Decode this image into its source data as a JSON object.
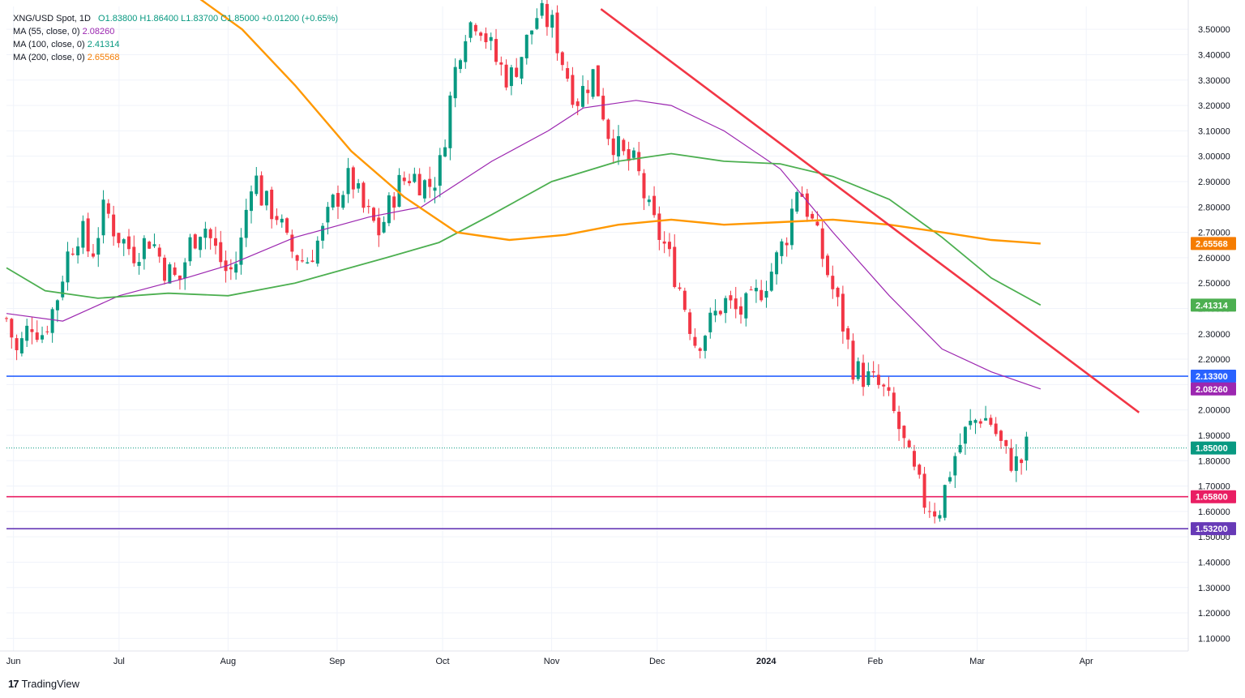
{
  "legend": {
    "symbol_line": "XNG/USD Spot, 1D",
    "ohlc": "O1.83800 H1.86400 L1.83700 C1.85000 +0.01200 (+0.65%)",
    "ma55_label": "MA (55, close, 0)",
    "ma55_value": "2.08260",
    "ma100_label": "MA (100, close, 0)",
    "ma100_value": "2.41314",
    "ma200_label": "MA (200, close, 0)",
    "ma200_value": "2.65568"
  },
  "branding": {
    "logo_icon": "tradingview-logo-icon",
    "text": "TradingView"
  },
  "colors": {
    "up": "#089981",
    "down": "#f23645",
    "ma55": "#9c27b0",
    "ma100": "#4caf50",
    "ma200": "#ff9800",
    "trendline": "#f23645",
    "blue_level": "#2962ff",
    "red_level": "#e91e63",
    "purple_level": "#673ab7",
    "last_price": "#089981"
  },
  "chart_data": {
    "type": "candlestick",
    "title": "XNG/USD Spot, 1D",
    "ylim": [
      1.05,
      3.59
    ],
    "y_ticks": [
      "3.50000",
      "3.40000",
      "3.30000",
      "3.20000",
      "3.10000",
      "3.00000",
      "2.90000",
      "2.80000",
      "2.70000",
      "2.60000",
      "2.50000",
      "2.40000",
      "2.30000",
      "2.20000",
      "2.10000",
      "2.00000",
      "1.90000",
      "1.80000",
      "1.70000",
      "1.60000",
      "1.50000",
      "1.40000",
      "1.30000",
      "1.20000",
      "1.10000"
    ],
    "x_ticks": [
      {
        "label": "Jun",
        "date": "2023-06-01"
      },
      {
        "label": "Jul",
        "date": "2023-07-01"
      },
      {
        "label": "Aug",
        "date": "2023-08-01"
      },
      {
        "label": "Sep",
        "date": "2023-09-01"
      },
      {
        "label": "Oct",
        "date": "2023-10-01"
      },
      {
        "label": "Nov",
        "date": "2023-11-01"
      },
      {
        "label": "Dec",
        "date": "2023-12-01"
      },
      {
        "label": "2024",
        "date": "2024-01-01"
      },
      {
        "label": "Feb",
        "date": "2024-02-01"
      },
      {
        "label": "Mar",
        "date": "2024-03-01"
      },
      {
        "label": "Apr",
        "date": "2024-04-01"
      }
    ],
    "x_range": [
      "2023-05-30",
      "2024-04-30"
    ],
    "close_path": [
      [
        "2023-05-30",
        2.36
      ],
      [
        "2023-06-02",
        2.22
      ],
      [
        "2023-06-06",
        2.35
      ],
      [
        "2023-06-09",
        2.3
      ],
      [
        "2023-06-13",
        2.42
      ],
      [
        "2023-06-16",
        2.6
      ],
      [
        "2023-06-20",
        2.72
      ],
      [
        "2023-06-23",
        2.6
      ],
      [
        "2023-06-27",
        2.8
      ],
      [
        "2023-06-30",
        2.7
      ],
      [
        "2023-07-05",
        2.62
      ],
      [
        "2023-07-10",
        2.68
      ],
      [
        "2023-07-14",
        2.56
      ],
      [
        "2023-07-18",
        2.5
      ],
      [
        "2023-07-21",
        2.65
      ],
      [
        "2023-07-25",
        2.74
      ],
      [
        "2023-07-28",
        2.64
      ],
      [
        "2023-08-01",
        2.53
      ],
      [
        "2023-08-04",
        2.6
      ],
      [
        "2023-08-08",
        2.95
      ],
      [
        "2023-08-11",
        2.82
      ],
      [
        "2023-08-15",
        2.77
      ],
      [
        "2023-08-18",
        2.64
      ],
      [
        "2023-08-23",
        2.58
      ],
      [
        "2023-08-28",
        2.7
      ],
      [
        "2023-08-31",
        2.82
      ],
      [
        "2023-09-05",
        2.92
      ],
      [
        "2023-09-08",
        2.8
      ],
      [
        "2023-09-13",
        2.7
      ],
      [
        "2023-09-18",
        2.88
      ],
      [
        "2023-09-22",
        2.93
      ],
      [
        "2023-09-27",
        2.88
      ],
      [
        "2023-09-30",
        2.94
      ],
      [
        "2023-10-04",
        3.3
      ],
      [
        "2023-10-07",
        3.5
      ],
      [
        "2023-10-11",
        3.55
      ],
      [
        "2023-10-16",
        3.38
      ],
      [
        "2023-10-20",
        3.3
      ],
      [
        "2023-10-24",
        3.42
      ],
      [
        "2023-10-28",
        3.56
      ],
      [
        "2023-11-01",
        3.52
      ],
      [
        "2023-11-04",
        3.38
      ],
      [
        "2023-11-08",
        3.22
      ],
      [
        "2023-11-13",
        3.33
      ],
      [
        "2023-11-17",
        3.1
      ],
      [
        "2023-11-21",
        3.0
      ],
      [
        "2023-11-25",
        2.96
      ],
      [
        "2023-11-29",
        2.76
      ],
      [
        "2023-12-03",
        2.65
      ],
      [
        "2023-12-07",
        2.5
      ],
      [
        "2023-12-12",
        2.26
      ],
      [
        "2023-12-16",
        2.34
      ],
      [
        "2023-12-20",
        2.43
      ],
      [
        "2023-12-24",
        2.38
      ],
      [
        "2023-12-28",
        2.42
      ],
      [
        "2024-01-03",
        2.56
      ],
      [
        "2024-01-07",
        2.7
      ],
      [
        "2024-01-10",
        2.9
      ],
      [
        "2024-01-14",
        2.74
      ],
      [
        "2024-01-18",
        2.56
      ],
      [
        "2024-01-22",
        2.38
      ],
      [
        "2024-01-26",
        2.16
      ],
      [
        "2024-01-30",
        2.12
      ],
      [
        "2024-02-03",
        2.08
      ],
      [
        "2024-02-07",
        1.96
      ],
      [
        "2024-02-11",
        1.78
      ],
      [
        "2024-02-15",
        1.64
      ],
      [
        "2024-02-19",
        1.6
      ],
      [
        "2024-02-23",
        1.8
      ],
      [
        "2024-02-27",
        1.92
      ],
      [
        "2024-03-02",
        1.98
      ],
      [
        "2024-03-05",
        1.95
      ],
      [
        "2024-03-09",
        1.82
      ],
      [
        "2024-03-13",
        1.78
      ],
      [
        "2024-03-15",
        1.85
      ]
    ],
    "moving_averages": [
      {
        "name": "MA (55, close, 0)",
        "color": "#9c27b0",
        "last": 2.0826,
        "points": [
          [
            "2023-05-30",
            2.38
          ],
          [
            "2023-06-15",
            2.35
          ],
          [
            "2023-07-01",
            2.45
          ],
          [
            "2023-07-20",
            2.52
          ],
          [
            "2023-08-01",
            2.57
          ],
          [
            "2023-08-20",
            2.68
          ],
          [
            "2023-09-10",
            2.76
          ],
          [
            "2023-09-25",
            2.8
          ],
          [
            "2023-10-15",
            2.98
          ],
          [
            "2023-10-31",
            3.1
          ],
          [
            "2023-11-10",
            3.19
          ],
          [
            "2023-11-25",
            3.22
          ],
          [
            "2023-12-05",
            3.2
          ],
          [
            "2023-12-20",
            3.1
          ],
          [
            "2024-01-05",
            2.95
          ],
          [
            "2024-01-20",
            2.7
          ],
          [
            "2024-02-05",
            2.45
          ],
          [
            "2024-02-20",
            2.24
          ],
          [
            "2024-03-05",
            2.15
          ],
          [
            "2024-03-19",
            2.0826
          ]
        ]
      },
      {
        "name": "MA (100, close, 0)",
        "color": "#4caf50",
        "last": 2.41314,
        "points": [
          [
            "2023-05-30",
            2.56
          ],
          [
            "2023-06-10",
            2.47
          ],
          [
            "2023-06-25",
            2.44
          ],
          [
            "2023-07-15",
            2.46
          ],
          [
            "2023-08-01",
            2.45
          ],
          [
            "2023-08-20",
            2.5
          ],
          [
            "2023-09-15",
            2.6
          ],
          [
            "2023-09-30",
            2.66
          ],
          [
            "2023-10-15",
            2.77
          ],
          [
            "2023-11-01",
            2.9
          ],
          [
            "2023-11-20",
            2.98
          ],
          [
            "2023-12-05",
            3.01
          ],
          [
            "2023-12-20",
            2.98
          ],
          [
            "2024-01-05",
            2.97
          ],
          [
            "2024-01-20",
            2.92
          ],
          [
            "2024-02-05",
            2.83
          ],
          [
            "2024-02-20",
            2.68
          ],
          [
            "2024-03-05",
            2.52
          ],
          [
            "2024-03-19",
            2.41314
          ]
        ]
      },
      {
        "name": "MA (200, close, 0)",
        "color": "#ff9800",
        "last": 2.65568,
        "points": [
          [
            "2023-07-20",
            3.66
          ],
          [
            "2023-08-05",
            3.5
          ],
          [
            "2023-08-20",
            3.28
          ],
          [
            "2023-09-05",
            3.02
          ],
          [
            "2023-09-20",
            2.84
          ],
          [
            "2023-10-05",
            2.7
          ],
          [
            "2023-10-20",
            2.67
          ],
          [
            "2023-11-05",
            2.69
          ],
          [
            "2023-11-20",
            2.73
          ],
          [
            "2023-12-05",
            2.75
          ],
          [
            "2023-12-20",
            2.73
          ],
          [
            "2024-01-05",
            2.74
          ],
          [
            "2024-01-20",
            2.75
          ],
          [
            "2024-02-05",
            2.73
          ],
          [
            "2024-02-20",
            2.7
          ],
          [
            "2024-03-05",
            2.67
          ],
          [
            "2024-03-19",
            2.65568
          ]
        ]
      }
    ],
    "trendline": {
      "color": "#f23645",
      "points": [
        [
          "2023-11-15",
          3.58
        ],
        [
          "2024-04-16",
          1.99
        ]
      ]
    },
    "levels": [
      {
        "value": 2.133,
        "label": "2.13300",
        "color": "#2962ff"
      },
      {
        "value": 1.658,
        "label": "1.65800",
        "color": "#e91e63"
      },
      {
        "value": 1.532,
        "label": "1.53200",
        "color": "#673ab7"
      }
    ],
    "price_labels": [
      {
        "value": 2.65568,
        "label": "2.65568",
        "color": "#f57c00"
      },
      {
        "value": 2.41314,
        "label": "2.41314",
        "color": "#4caf50"
      },
      {
        "value": 2.0826,
        "label": "2.08260",
        "color": "#9c27b0"
      },
      {
        "value": 1.85,
        "label": "1.85000",
        "color": "#089981"
      }
    ],
    "last_price": 1.85
  }
}
